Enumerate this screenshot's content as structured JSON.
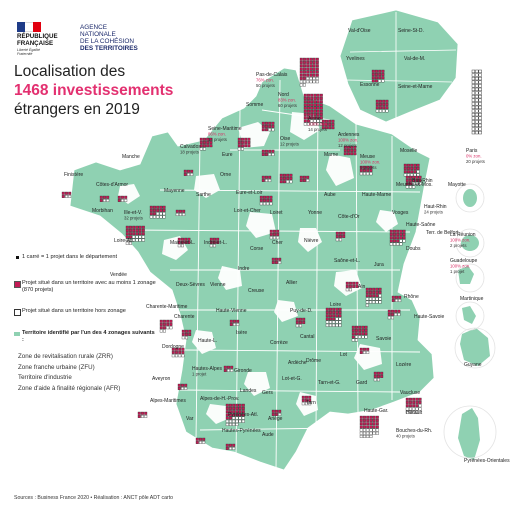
{
  "header": {
    "rf_line1": "RÉPUBLIQUE",
    "rf_line2": "FRANÇAISE",
    "rf_motto": "Liberté Égalité Fraternité",
    "anct_line1": "AGENCE",
    "anct_line2": "NATIONALE",
    "anct_line3": "DE LA COHÉSION",
    "anct_line4": "DES TERRITOIRES"
  },
  "title": {
    "line1": "Localisation des",
    "highlight": "1468 investissements",
    "line3": "étrangers en 2019"
  },
  "legend": {
    "square_unit": "1 carré = 1 projet dans le département",
    "in_zone": "Projet situé dans un territoire avec au moins 1 zonage (870 projets)",
    "out_zone": "Projet situé dans un territoire hors zonage",
    "zoned_territory": "Territoire identifié par l'un des 4 zonages suivants :",
    "zones": [
      "Zone de revitalisation rurale (ZRR)",
      "Zone franche urbaine (ZFU)",
      "Territoire d'industrie",
      "Zone d'aide à finalité régionale (AFR)"
    ]
  },
  "colors": {
    "zoned": "#8fd1b2",
    "unzoned": "#ffffff",
    "in_zone": "#c41a55",
    "out_zone": "#ffffff",
    "border": "#ffffff",
    "accent": "#e33070"
  },
  "departments": [
    {
      "name": "Pas-de-Calais",
      "pct": "76% zon.",
      "count": "50 projets"
    },
    {
      "name": "Nord",
      "pct": "83% zon.",
      "count": "60 projets"
    },
    {
      "name": "Somme",
      "pct": "",
      "count": ""
    },
    {
      "name": "Aisne",
      "pct": "100% zon.",
      "count": "14 projets"
    },
    {
      "name": "Seine-Maritime",
      "pct": "86% zon.",
      "count": "14 projets"
    },
    {
      "name": "Oise",
      "pct": "",
      "count": "12 projets"
    },
    {
      "name": "Ardennes",
      "pct": "100% zon.",
      "count": "12 projets"
    },
    {
      "name": "Calvados",
      "pct": "",
      "count": "18 projets"
    },
    {
      "name": "Eure",
      "pct": "",
      "count": ""
    },
    {
      "name": "Marne",
      "pct": "",
      "count": ""
    },
    {
      "name": "Meuse",
      "pct": "100% zon.",
      "count": "9 projets"
    },
    {
      "name": "Moselle",
      "pct": "",
      "count": ""
    },
    {
      "name": "Bas-Rhin",
      "pct": "",
      "count": ""
    },
    {
      "name": "Manche",
      "pct": "",
      "count": ""
    },
    {
      "name": "Orne",
      "pct": "",
      "count": ""
    },
    {
      "name": "Eure-et-Loir",
      "pct": "",
      "count": ""
    },
    {
      "name": "Aube",
      "pct": "",
      "count": ""
    },
    {
      "name": "Haute-Marne",
      "pct": "",
      "count": ""
    },
    {
      "name": "Meurthe-et-Mos.",
      "pct": "",
      "count": ""
    },
    {
      "name": "Vosges",
      "pct": "",
      "count": ""
    },
    {
      "name": "Haut-Rhin",
      "pct": "",
      "count": "24 projets"
    },
    {
      "name": "Finistère",
      "pct": "",
      "count": ""
    },
    {
      "name": "Côtes-d'Armor",
      "pct": "",
      "count": ""
    },
    {
      "name": "Ille-et-V.",
      "pct": "",
      "count": "32 projets"
    },
    {
      "name": "Mayenne",
      "pct": "",
      "count": ""
    },
    {
      "name": "Sarthe",
      "pct": "",
      "count": ""
    },
    {
      "name": "Loiret",
      "pct": "",
      "count": ""
    },
    {
      "name": "Yonne",
      "pct": "",
      "count": ""
    },
    {
      "name": "Haute-Saône",
      "pct": "",
      "count": ""
    },
    {
      "name": "Morbihan",
      "pct": "",
      "count": ""
    },
    {
      "name": "Loir-et-Cher",
      "pct": "",
      "count": ""
    },
    {
      "name": "Côte-d'Or",
      "pct": "",
      "count": ""
    },
    {
      "name": "Terr. de Belfort",
      "pct": "",
      "count": ""
    },
    {
      "name": "Loire-Atl.",
      "pct": "",
      "count": ""
    },
    {
      "name": "Maine-et-L.",
      "pct": "",
      "count": ""
    },
    {
      "name": "Indre-et-L.",
      "pct": "",
      "count": ""
    },
    {
      "name": "Cher",
      "pct": "",
      "count": ""
    },
    {
      "name": "Nièvre",
      "pct": "",
      "count": ""
    },
    {
      "name": "Doubs",
      "pct": "",
      "count": ""
    },
    {
      "name": "Vendée",
      "pct": "",
      "count": ""
    },
    {
      "name": "Indre",
      "pct": "",
      "count": ""
    },
    {
      "name": "Saône-et-L.",
      "pct": "",
      "count": ""
    },
    {
      "name": "Jura",
      "pct": "",
      "count": ""
    },
    {
      "name": "Deux-Sèvres",
      "pct": "",
      "count": ""
    },
    {
      "name": "Vienne",
      "pct": "",
      "count": ""
    },
    {
      "name": "Allier",
      "pct": "",
      "count": ""
    },
    {
      "name": "Ain",
      "pct": "",
      "count": ""
    },
    {
      "name": "Creuse",
      "pct": "",
      "count": ""
    },
    {
      "name": "Haute-Vienne",
      "pct": "",
      "count": ""
    },
    {
      "name": "Charente-Maritime",
      "pct": "",
      "count": ""
    },
    {
      "name": "Charente",
      "pct": "",
      "count": ""
    },
    {
      "name": "Puy-de-D.",
      "pct": "",
      "count": ""
    },
    {
      "name": "Loire",
      "pct": "",
      "count": ""
    },
    {
      "name": "Rhône",
      "pct": "",
      "count": ""
    },
    {
      "name": "Haute-Savoie",
      "pct": "",
      "count": ""
    },
    {
      "name": "Savoie",
      "pct": "",
      "count": ""
    },
    {
      "name": "Isère",
      "pct": "",
      "count": ""
    },
    {
      "name": "Corrèze",
      "pct": "",
      "count": ""
    },
    {
      "name": "Cantal",
      "pct": "",
      "count": ""
    },
    {
      "name": "Haute-L.",
      "pct": "",
      "count": ""
    },
    {
      "name": "Dordogne",
      "pct": "",
      "count": ""
    },
    {
      "name": "Gironde",
      "pct": "",
      "count": ""
    },
    {
      "name": "Lot",
      "pct": "",
      "count": ""
    },
    {
      "name": "Drôme",
      "pct": "",
      "count": ""
    },
    {
      "name": "Ardèche",
      "pct": "",
      "count": ""
    },
    {
      "name": "Lozère",
      "pct": "",
      "count": ""
    },
    {
      "name": "Hautes-Alpes",
      "pct": "",
      "count": "1 projet"
    },
    {
      "name": "Lot-et-G.",
      "pct": "",
      "count": ""
    },
    {
      "name": "Aveyron",
      "pct": "",
      "count": ""
    },
    {
      "name": "Landes",
      "pct": "",
      "count": ""
    },
    {
      "name": "Tarn-et-G.",
      "pct": "",
      "count": ""
    },
    {
      "name": "Gard",
      "pct": "",
      "count": ""
    },
    {
      "name": "Vaucluse",
      "pct": "",
      "count": ""
    },
    {
      "name": "Alpes-de-H.-Prov.",
      "pct": "",
      "count": ""
    },
    {
      "name": "Gers",
      "pct": "",
      "count": ""
    },
    {
      "name": "Tarn",
      "pct": "",
      "count": ""
    },
    {
      "name": "Hérault",
      "pct": "",
      "count": ""
    },
    {
      "name": "Alpes-Maritimes",
      "pct": "",
      "count": ""
    },
    {
      "name": "Pyrénées-Atl.",
      "pct": "",
      "count": ""
    },
    {
      "name": "Haute-Gar.",
      "pct": "",
      "count": ""
    },
    {
      "name": "Bouches-du-Rh.",
      "pct": "",
      "count": "40 projets"
    },
    {
      "name": "Var",
      "pct": "",
      "count": ""
    },
    {
      "name": "Hautes-Pyrénées",
      "pct": "",
      "count": ""
    },
    {
      "name": "Ariège",
      "pct": "",
      "count": ""
    },
    {
      "name": "Aude",
      "pct": "",
      "count": ""
    },
    {
      "name": "Pyrénées-Orientales",
      "pct": "",
      "count": ""
    },
    {
      "name": "Corse",
      "pct": "",
      "count": ""
    }
  ],
  "idf": [
    {
      "name": "Val-d'Oise",
      "pct": "",
      "count": ""
    },
    {
      "name": "Seine-St-D.",
      "pct": "",
      "count": ""
    },
    {
      "name": "Yvelines",
      "pct": "",
      "count": ""
    },
    {
      "name": "Val-de-M.",
      "pct": "",
      "count": ""
    },
    {
      "name": "Essonne",
      "pct": "",
      "count": ""
    },
    {
      "name": "Seine-et-Marne",
      "pct": "",
      "count": ""
    },
    {
      "name": "Paris",
      "pct": "0% zon.",
      "count": "20 projets"
    }
  ],
  "overseas": [
    {
      "name": "Mayotte",
      "pct": "",
      "count": ""
    },
    {
      "name": "La Réunion",
      "pct": "100% zon.",
      "count": "2 projets"
    },
    {
      "name": "Guadeloupe",
      "pct": "100% zon.",
      "count": "1 projet"
    },
    {
      "name": "Martinique",
      "pct": "",
      "count": ""
    },
    {
      "name": "Guyane",
      "pct": "",
      "count": ""
    }
  ],
  "source": "Sources : Business France 2020 • Réalisation : ANCT pôle ADT carto"
}
